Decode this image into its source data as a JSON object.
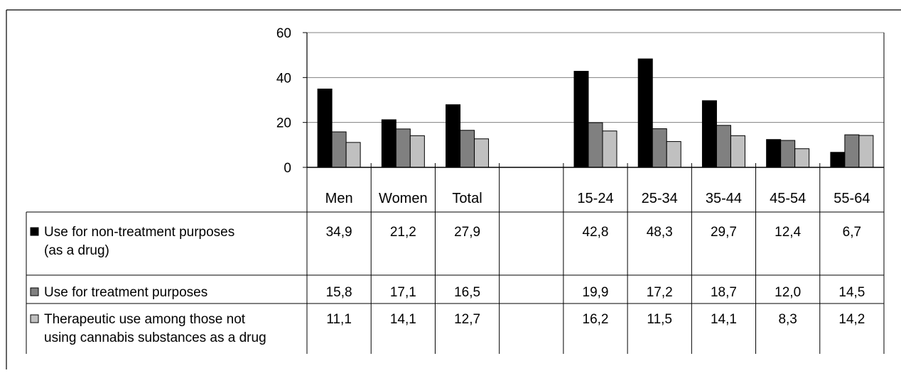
{
  "chart_data": {
    "type": "bar",
    "categories": [
      "Men",
      "Women",
      "Total",
      "",
      "15-24",
      "25-34",
      "35-44",
      "45-54",
      "55-64"
    ],
    "ylim": [
      0,
      60
    ],
    "yticks": [
      0,
      20,
      40,
      60
    ],
    "grid": true,
    "series": [
      {
        "name": "Use for non-treatment purposes (as a drug)",
        "name_lines": [
          "Use for non-treatment purposes",
          "(as a drug)"
        ],
        "color": "#000000",
        "values": [
          34.9,
          21.2,
          27.9,
          null,
          42.8,
          48.3,
          29.7,
          12.4,
          6.7
        ],
        "labels": [
          "34,9",
          "21,2",
          "27,9",
          "",
          "42,8",
          "48,3",
          "29,7",
          "12,4",
          "6,7"
        ]
      },
      {
        "name": "Use for treatment purposes",
        "name_lines": [
          "Use for treatment purposes"
        ],
        "color": "#808080",
        "values": [
          15.8,
          17.1,
          16.5,
          null,
          19.9,
          17.2,
          18.7,
          12.0,
          14.5
        ],
        "labels": [
          "15,8",
          "17,1",
          "16,5",
          "",
          "19,9",
          "17,2",
          "18,7",
          "12,0",
          "14,5"
        ]
      },
      {
        "name": "Therapeutic use among those not using cannabis substances as a drug",
        "name_lines": [
          "Therapeutic use among those not",
          "using cannabis substances as a drug"
        ],
        "color": "#c0c0c0",
        "values": [
          11.1,
          14.1,
          12.7,
          null,
          16.2,
          11.5,
          14.1,
          8.3,
          14.2
        ],
        "labels": [
          "11,1",
          "14,1",
          "12,7",
          "",
          "16,2",
          "11,5",
          "14,1",
          "8,3",
          "14,2"
        ]
      }
    ]
  }
}
